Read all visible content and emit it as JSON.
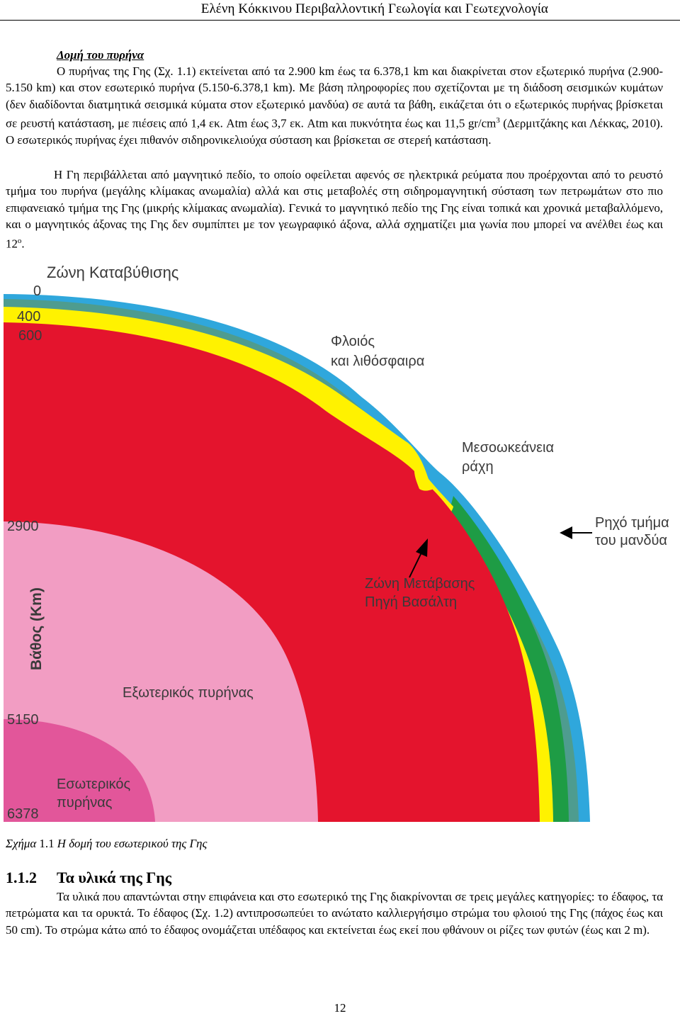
{
  "header": {
    "title": "Ελένη Κόκκινου Περιβαλλοντική Γεωλογία και Γεωτεχνολογία"
  },
  "section": {
    "title": "Δομή του πυρήνα"
  },
  "paragraph1": {
    "part1": "Ο πυρήνας της Γης (Σχ. 1.1) εκτείνεται από τα 2.900 km έως τα 6.378,1 km και διακρίνεται στον εξωτερικό πυρήνα (2.900-5.150 km) και στον εσωτερικό πυρήνα (5.150-6.378,1 km). Με βάση πληροφορίες που σχετίζονται με τη διάδοση σεισμικών κυμάτων (δεν διαδίδονται διατμητικά σεισμικά κύματα στον εξωτερικό μανδύα) σε αυτά τα βάθη, εικάζεται ότι ο εξωτερικός πυρήνας βρίσκεται σε ρευστή κατάσταση, με πιέσεις από 1,4 εκ. Atm έως 3,7 εκ. Atm και πυκνότητα έως και 11,5 gr/cm",
    "sup": "3",
    "part2": " (Δερμιτζάκης και Λέκκας, 2010). Ο εσωτερικός πυρήνας έχει πιθανόν σιδηρονικελιούχα σύσταση και βρίσκεται σε στερεή κατάσταση."
  },
  "paragraph2": {
    "part1": "Η Γη περιβάλλεται από μαγνητικό πεδίο, το οποίο οφείλεται αφενός σε ηλεκτρικά ρεύματα που προέρχονται από το ρευστό τμήμα του πυρήνα (μεγάλης κλίμακας ανωμαλία) αλλά και στις μεταβολές στη σιδηρομαγνητική σύσταση των πετρωμάτων στο πιο επιφανειακό τμήμα της Γης (μικρής κλίμακας ανωμαλία). Γενικά το μαγνητικό πεδίο της Γης είναι τοπικά και χρονικά μεταβαλλόμενο, και ο μαγνητικός άξονας της Γης δεν συμπίπτει με τον γεωγραφικό άξονα, αλλά σχηματίζει μια γωνία που μπορεί να ανέλθει έως και 12",
    "sup": "ο",
    "part2": "."
  },
  "figure": {
    "labels": {
      "subduction": "Ζώνη Καταβύθισης",
      "crust": [
        "Φλοιός",
        "και λιθόσφαιρα"
      ],
      "ridge": [
        "Μεσοωκεάνεια",
        "ράχη"
      ],
      "shallow_mantle": [
        "Ρηχό τμήμα",
        "του μανδύα"
      ],
      "transition": [
        "Ζώνη Μετάβασης",
        "Πηγή Βασάλτη"
      ],
      "outer_core": "Εξωτερικός πυρήνας",
      "inner_core": [
        "Εσωτερικός",
        "πυρήνας"
      ]
    },
    "depth_axis_label": "Βάθος (Km)",
    "depth_ticks": [
      "0",
      "400",
      "600",
      "2900",
      "5150",
      "6378"
    ],
    "colors": {
      "inner_core": "#e2569a",
      "outer_core": "#f29dc3",
      "mantle": "#e4142d",
      "transition": "#fff200",
      "shallow_mantle": "#1e9c45",
      "crust": "#2fa7dc",
      "lithosphere": "#4e9c8f"
    }
  },
  "caption": {
    "prefix": "Σχήμα ",
    "number": "1.1",
    "text": " Η δομή του εσωτερικού της Γης"
  },
  "subsection": {
    "number": "1.1.2",
    "title": "Τα υλικά της Γης"
  },
  "paragraph3": "Τα υλικά που απαντώνται στην επιφάνεια και στο εσωτερικό της Γης διακρίνονται σε τρεις μεγάλες κατηγορίες: το έδαφος, τα πετρώματα και τα ορυκτά. Το έδαφος (Σχ. 1.2) αντιπροσωπεύει το ανώτατο καλλιεργήσιμο στρώμα του φλοιού της Γης (πάχος έως και 50 cm). Το στρώμα κάτω από το έδαφος ονομάζεται υπέδαφος και εκτείνεται έως εκεί που φθάνουν οι ρίζες των φυτών (έως και 2 m).",
  "page_number": "12"
}
